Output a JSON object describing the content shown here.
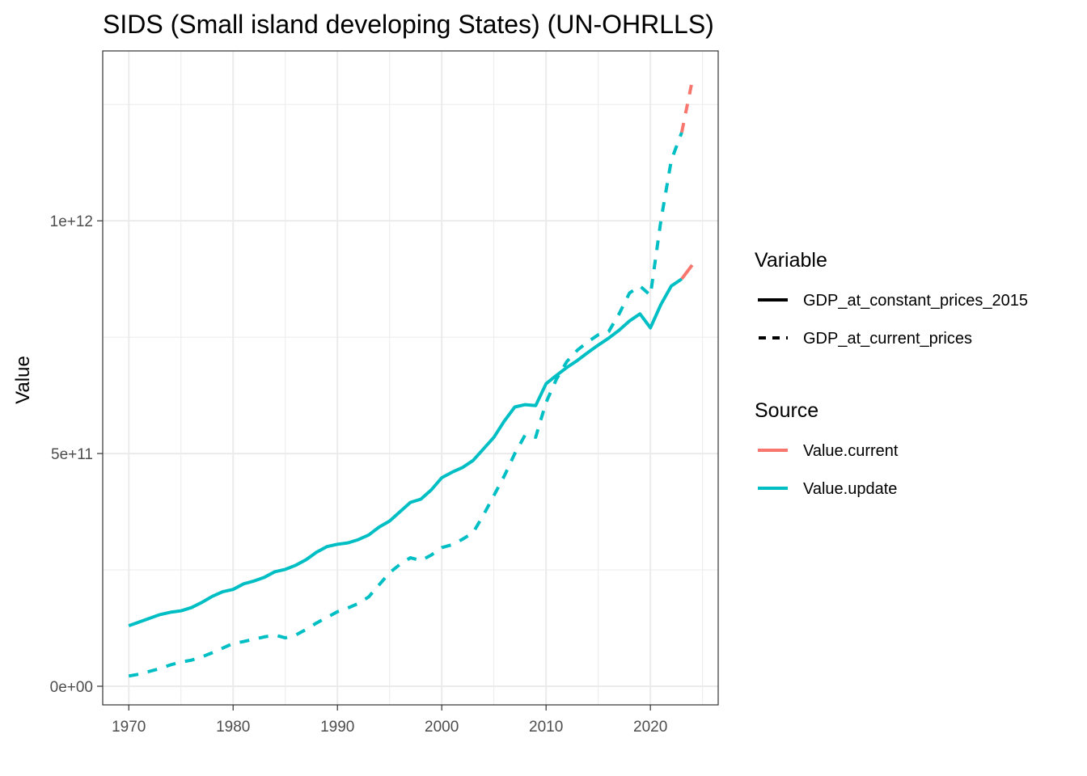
{
  "chart_data": {
    "type": "line",
    "title": "SIDS (Small island developing States) (UN-OHRLLS)",
    "xlabel": "",
    "ylabel": "Value",
    "xlim": [
      1967.5,
      2026.5
    ],
    "ylim": [
      -40000000000,
      1365000000000
    ],
    "x_ticks": [
      {
        "value": 1970,
        "label": "1970"
      },
      {
        "value": 1980,
        "label": "1980"
      },
      {
        "value": 1990,
        "label": "1990"
      },
      {
        "value": 2000,
        "label": "2000"
      },
      {
        "value": 2010,
        "label": "2010"
      },
      {
        "value": 2020,
        "label": "2020"
      }
    ],
    "x_minor_ticks": [
      1975,
      1985,
      1995,
      2005,
      2015,
      2025
    ],
    "y_ticks": [
      {
        "value": 0,
        "label": "0e+00"
      },
      {
        "value": 500000000000,
        "label": "5e+11"
      },
      {
        "value": 1000000000000,
        "label": "1e+12"
      }
    ],
    "y_minor_ticks": [
      250000000000,
      750000000000,
      1250000000000
    ],
    "grid": true,
    "colors": {
      "Value.current": "#F8766D",
      "Value.update": "#00BFC4"
    },
    "legend": {
      "placement": "right",
      "groups": [
        {
          "title": "Variable",
          "entries": [
            {
              "label": "GDP_at_constant_prices_2015",
              "style": "solid"
            },
            {
              "label": "GDP_at_current_prices",
              "style": "dashed"
            }
          ]
        },
        {
          "title": "Source",
          "entries": [
            {
              "label": "Value.current",
              "color": "#F8766D"
            },
            {
              "label": "Value.update",
              "color": "#00BFC4"
            }
          ]
        }
      ]
    },
    "series": [
      {
        "variable": "GDP_at_constant_prices_2015",
        "source": "Value.update",
        "style": "solid",
        "color": "#00BFC4",
        "x": [
          1970,
          1971,
          1972,
          1973,
          1974,
          1975,
          1976,
          1977,
          1978,
          1979,
          1980,
          1981,
          1982,
          1983,
          1984,
          1985,
          1986,
          1987,
          1988,
          1989,
          1990,
          1991,
          1992,
          1993,
          1994,
          1995,
          1996,
          1997,
          1998,
          1999,
          2000,
          2001,
          2002,
          2003,
          2004,
          2005,
          2006,
          2007,
          2008,
          2009,
          2010,
          2011,
          2012,
          2013,
          2014,
          2015,
          2016,
          2017,
          2018,
          2019,
          2020,
          2021,
          2022,
          2023
        ],
        "y": [
          130000000000,
          138000000000,
          146000000000,
          154000000000,
          159000000000,
          162000000000,
          169000000000,
          180000000000,
          193000000000,
          203000000000,
          208000000000,
          220000000000,
          226000000000,
          234000000000,
          246000000000,
          251000000000,
          260000000000,
          272000000000,
          288000000000,
          300000000000,
          305000000000,
          308000000000,
          315000000000,
          325000000000,
          342000000000,
          355000000000,
          375000000000,
          395000000000,
          402000000000,
          422000000000,
          448000000000,
          460000000000,
          470000000000,
          485000000000,
          510000000000,
          535000000000,
          570000000000,
          600000000000,
          605000000000,
          603000000000,
          650000000000,
          668000000000,
          685000000000,
          700000000000,
          717000000000,
          733000000000,
          748000000000,
          765000000000,
          785000000000,
          800000000000,
          770000000000,
          820000000000,
          860000000000,
          875000000000
        ]
      },
      {
        "variable": "GDP_at_current_prices",
        "source": "Value.update",
        "style": "dashed",
        "color": "#00BFC4",
        "x": [
          1970,
          1971,
          1972,
          1973,
          1974,
          1975,
          1976,
          1977,
          1978,
          1979,
          1980,
          1981,
          1982,
          1983,
          1984,
          1985,
          1986,
          1987,
          1988,
          1989,
          1990,
          1991,
          1992,
          1993,
          1994,
          1995,
          1996,
          1997,
          1998,
          1999,
          2000,
          2001,
          2002,
          2003,
          2004,
          2005,
          2006,
          2007,
          2008,
          2009,
          2010,
          2011,
          2012,
          2013,
          2014,
          2015,
          2016,
          2017,
          2018,
          2019,
          2020,
          2021,
          2022,
          2023
        ],
        "y": [
          22000000000,
          26000000000,
          32000000000,
          38000000000,
          46000000000,
          52000000000,
          56000000000,
          63000000000,
          72000000000,
          82000000000,
          92000000000,
          96000000000,
          101000000000,
          106000000000,
          110000000000,
          104000000000,
          110000000000,
          122000000000,
          136000000000,
          148000000000,
          160000000000,
          168000000000,
          178000000000,
          192000000000,
          218000000000,
          244000000000,
          262000000000,
          276000000000,
          270000000000,
          282000000000,
          298000000000,
          304000000000,
          316000000000,
          330000000000,
          368000000000,
          410000000000,
          452000000000,
          500000000000,
          540000000000,
          535000000000,
          610000000000,
          660000000000,
          698000000000,
          722000000000,
          740000000000,
          755000000000,
          762000000000,
          800000000000,
          845000000000,
          860000000000,
          840000000000,
          1000000000000,
          1130000000000,
          1190000000000
        ]
      },
      {
        "variable": "GDP_at_constant_prices_2015",
        "source": "Value.current",
        "style": "solid",
        "color": "#F8766D",
        "x": [
          2023,
          2024
        ],
        "y": [
          875000000000,
          905000000000
        ]
      },
      {
        "variable": "GDP_at_current_prices",
        "source": "Value.current",
        "style": "dashed",
        "color": "#F8766D",
        "x": [
          2023,
          2024
        ],
        "y": [
          1190000000000,
          1300000000000
        ]
      }
    ]
  }
}
